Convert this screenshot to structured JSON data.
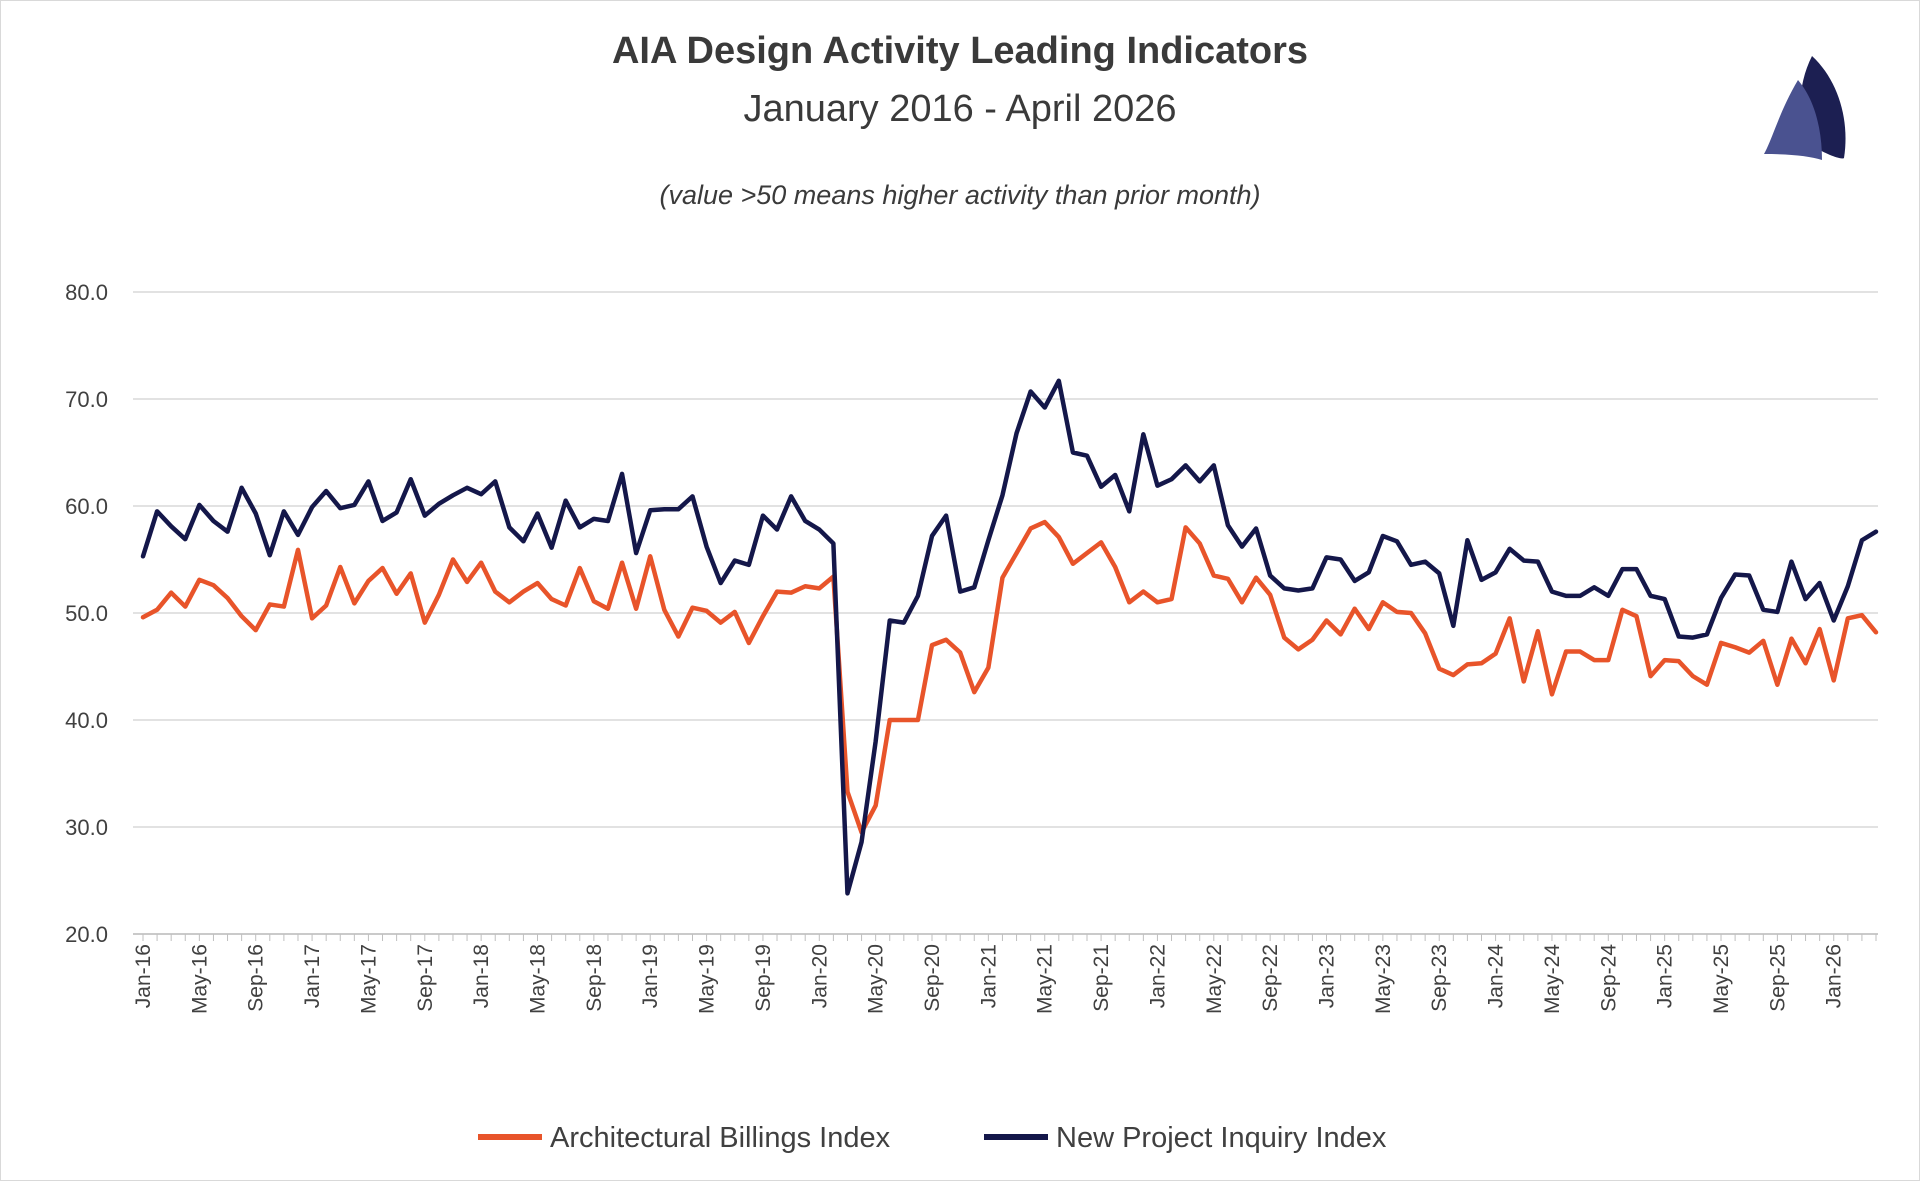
{
  "chart_data": {
    "type": "line",
    "title": "AIA Design Activity Leading Indicators",
    "subtitle": "January 2016 - April 2026",
    "note": "(value >50 means higher activity than prior month)",
    "ylim": [
      20,
      80
    ],
    "yticks": [
      "80.0",
      "70.0",
      "60.0",
      "50.0",
      "40.0",
      "30.0",
      "20.0"
    ],
    "x_tick_labels": [
      "Jan-16",
      "May-16",
      "Sep-16",
      "Jan-17",
      "May-17",
      "Sep-17",
      "Jan-18",
      "May-18",
      "Sep-18",
      "Jan-19",
      "May-19",
      "Sep-19",
      "Jan-20",
      "May-20",
      "Sep-20",
      "Jan-21",
      "May-21",
      "Sep-21",
      "Jan-22",
      "May-22",
      "Sep-22",
      "Jan-23",
      "May-23",
      "Sep-23",
      "Jan-24",
      "May-24",
      "Sep-24",
      "Jan-25",
      "May-25",
      "Sep-25",
      "Jan-26"
    ],
    "x_tick_every_months": 4,
    "grid": "horizontal",
    "legend_position": "bottom",
    "series": [
      {
        "name": "Architectural Billings Index",
        "color": "#e8542a",
        "values": [
          49.6,
          50.3,
          51.9,
          50.6,
          53.1,
          52.6,
          51.4,
          49.7,
          48.4,
          50.8,
          50.6,
          55.9,
          49.5,
          50.7,
          54.3,
          50.9,
          53.0,
          54.2,
          51.8,
          53.7,
          49.1,
          51.7,
          55.0,
          52.9,
          54.7,
          52.0,
          51.0,
          52.0,
          52.8,
          51.3,
          50.7,
          54.2,
          51.1,
          50.4,
          54.7,
          50.4,
          55.3,
          50.3,
          47.8,
          50.5,
          50.2,
          49.1,
          50.1,
          47.2,
          49.7,
          52.0,
          51.9,
          52.5,
          52.3,
          53.4,
          33.3,
          29.5,
          32.0,
          40.0,
          40.0,
          40.0,
          47.0,
          47.5,
          46.3,
          42.6,
          44.9,
          53.3,
          55.6,
          57.9,
          58.5,
          57.1,
          54.6,
          55.6,
          56.6,
          54.3,
          51.0,
          52.0,
          51.0,
          51.3,
          58.0,
          56.5,
          53.5,
          53.2,
          51.0,
          53.3,
          51.7,
          47.7,
          46.6,
          47.5,
          49.3,
          48.0,
          50.4,
          48.5,
          51.0,
          50.1,
          50.0,
          48.1,
          44.8,
          44.2,
          45.2,
          45.3,
          46.2,
          49.5,
          43.6,
          48.3,
          42.4,
          46.4,
          46.4,
          45.6,
          45.6,
          50.3,
          49.7,
          44.1,
          45.6,
          45.5,
          44.1,
          43.3,
          47.2,
          46.8,
          46.3,
          47.4,
          43.3,
          47.6,
          45.3,
          48.5,
          43.7,
          49.5,
          49.8,
          48.2
        ]
      },
      {
        "name": "New Project Inquiry Index",
        "color": "#14174a",
        "values": [
          55.3,
          59.5,
          58.1,
          56.9,
          60.1,
          58.6,
          57.6,
          61.7,
          59.3,
          55.4,
          59.5,
          57.3,
          59.9,
          61.4,
          59.8,
          60.1,
          62.3,
          58.6,
          59.4,
          62.5,
          59.1,
          60.2,
          61.0,
          61.7,
          61.1,
          62.3,
          58.0,
          56.7,
          59.3,
          56.1,
          60.5,
          58.0,
          58.8,
          58.6,
          63.0,
          55.6,
          59.6,
          59.7,
          59.7,
          60.9,
          56.2,
          52.8,
          54.9,
          54.5,
          59.1,
          57.8,
          60.9,
          58.6,
          57.8,
          56.5,
          23.8,
          28.6,
          38.0,
          49.3,
          49.1,
          51.6,
          57.2,
          59.1,
          52.0,
          52.4,
          56.8,
          61.0,
          66.8,
          70.7,
          69.2,
          71.7,
          65.0,
          64.7,
          61.8,
          62.9,
          59.5,
          66.7,
          61.9,
          62.5,
          63.8,
          62.3,
          63.8,
          58.2,
          56.2,
          57.9,
          53.5,
          52.3,
          52.1,
          52.3,
          55.2,
          55.0,
          53.0,
          53.8,
          57.2,
          56.7,
          54.5,
          54.8,
          53.7,
          48.8,
          56.8,
          53.1,
          53.8,
          56.0,
          54.9,
          54.8,
          52.0,
          51.6,
          51.6,
          52.4,
          51.6,
          54.1,
          54.1,
          51.6,
          51.3,
          47.8,
          47.7,
          48.0,
          51.4,
          53.6,
          53.5,
          50.3,
          50.1,
          54.8,
          51.3,
          52.8,
          49.3,
          52.5,
          56.8,
          57.6
        ]
      }
    ]
  }
}
